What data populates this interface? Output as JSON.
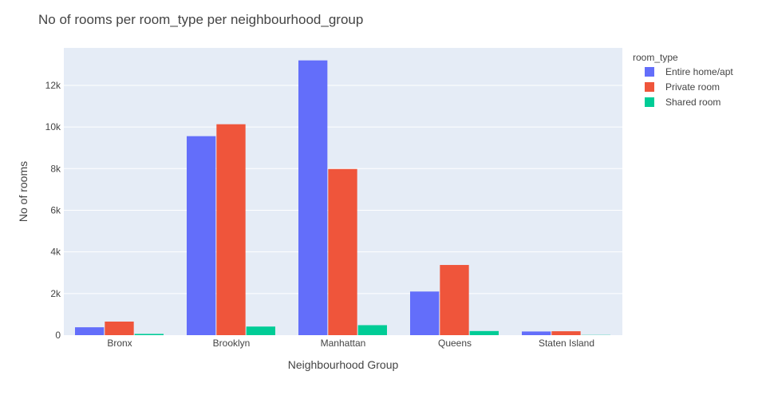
{
  "chart_data": {
    "type": "bar",
    "title": "No of rooms per room_type per neighbourhood_group",
    "xlabel": "Neighbourhood Group",
    "ylabel": "No of rooms",
    "categories": [
      "Bronx",
      "Brooklyn",
      "Manhattan",
      "Queens",
      "Staten Island"
    ],
    "ylim": [
      0,
      13800
    ],
    "yticks": [
      0,
      2000,
      4000,
      6000,
      8000,
      10000,
      12000
    ],
    "ytick_labels": [
      "0",
      "2k",
      "4k",
      "6k",
      "8k",
      "10k",
      "12k"
    ],
    "grid": true,
    "legend": {
      "title": "room_type",
      "position": "top-right"
    },
    "series": [
      {
        "name": "Entire home/apt",
        "color": "#636efa",
        "values": [
          379,
          9559,
          13199,
          2096,
          176
        ]
      },
      {
        "name": "Private room",
        "color": "#ef553b",
        "values": [
          652,
          10132,
          7982,
          3372,
          188
        ]
      },
      {
        "name": "Shared room",
        "color": "#00cc96",
        "values": [
          60,
          413,
          480,
          198,
          9
        ]
      }
    ]
  }
}
